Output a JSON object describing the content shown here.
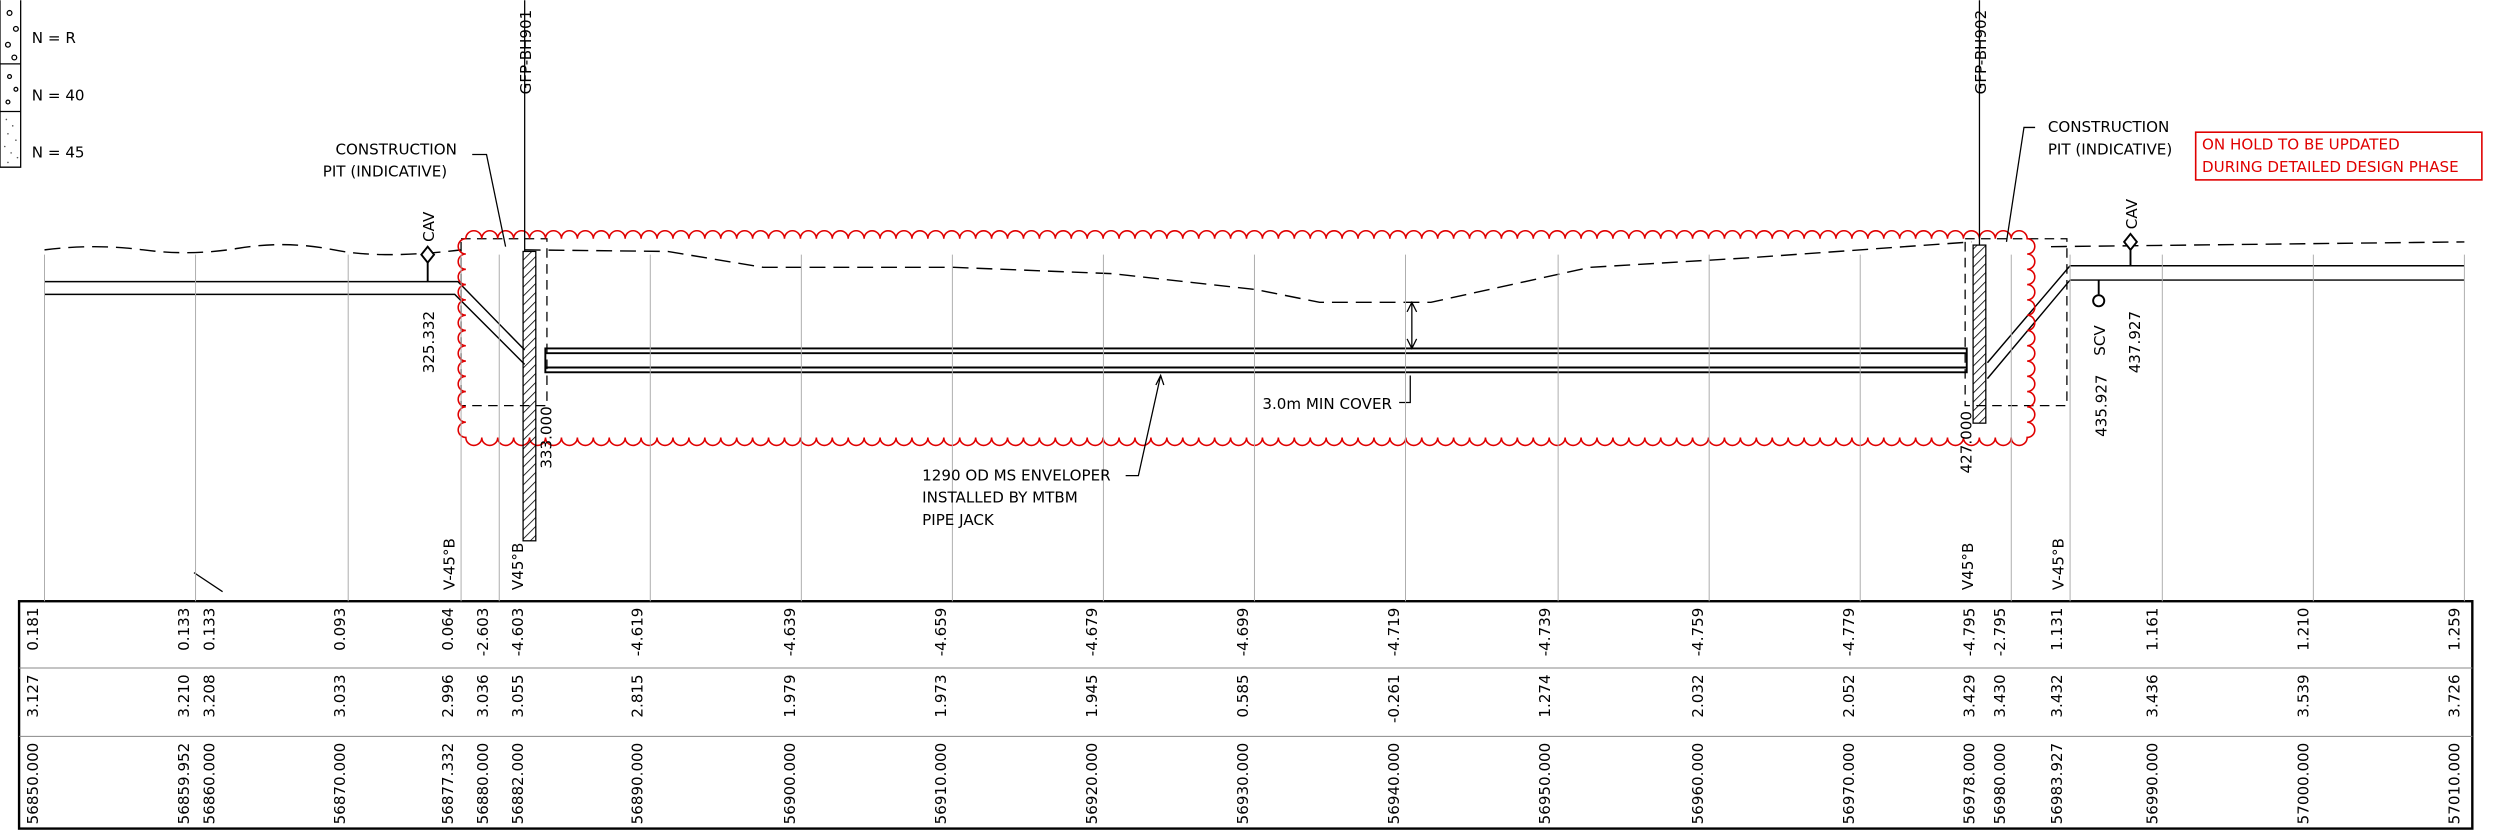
{
  "legend": [
    "N = R",
    "N = 40",
    "N = 45"
  ],
  "boreholes": [
    "GFP-BH901",
    "GFP-BH902"
  ],
  "construction_pits": [
    [
      "CONSTRUCTION",
      "PIT (INDICATIVE)"
    ],
    [
      "CONSTRUCTION",
      "PIT (INDICATIVE)"
    ]
  ],
  "hold_note": [
    "ON HOLD TO BE UPDATED",
    "DURING DETAILED DESIGN PHASE"
  ],
  "valves": [
    "CAV",
    "CAV",
    "SCV"
  ],
  "levels": [
    "325.332",
    "333.000",
    "427.000",
    "435.927",
    "437.927"
  ],
  "cover_note": "3.0m MIN COVER",
  "pipe_note": [
    "1290 OD MS ENVELOPER",
    "INSTALLED BY MTBM",
    "PIPE JACK"
  ],
  "bend_labels": [
    "V-45°B",
    "V45°B",
    "V45°B",
    "V-45°B"
  ],
  "table": {
    "rows": [
      [
        "0.181",
        "0.133",
        "0.133",
        "0.093",
        "0.064",
        "-2.603",
        "-4.603",
        "-4.619",
        "-4.639",
        "-4.659",
        "-4.679",
        "-4.699",
        "-4.719",
        "-4.739",
        "-4.759",
        "-4.779",
        "-4.795",
        "-2.795",
        "1.131",
        "1.161",
        "1.210",
        "1.259"
      ],
      [
        "3.127",
        "3.210",
        "3.208",
        "3.033",
        "2.996",
        "3.036",
        "3.055",
        "2.815",
        "1.979",
        "1.973",
        "1.945",
        "0.585",
        "-0.261",
        "1.274",
        "2.032",
        "2.052",
        "3.429",
        "3.430",
        "3.432",
        "3.436",
        "3.539",
        "3.726"
      ],
      [
        "56850.000",
        "56859.952",
        "56860.000",
        "56870.000",
        "56877.332",
        "56880.000",
        "56882.000",
        "56890.000",
        "56900.000",
        "56910.000",
        "56920.000",
        "56930.000",
        "56940.000",
        "56950.000",
        "56960.000",
        "56970.000",
        "56978.000",
        "56980.000",
        "56983.927",
        "56990.000",
        "57000.000",
        "57010.000"
      ]
    ]
  }
}
